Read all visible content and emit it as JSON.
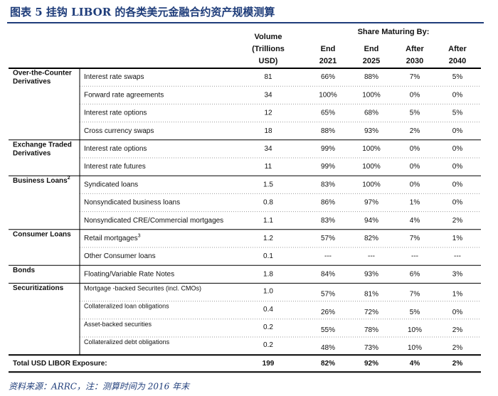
{
  "title": "图表 5   挂钩 LIBOR 的各类美元金融合约资产规模测算",
  "header": {
    "volume": [
      "Volume",
      "(Trillions",
      "USD)"
    ],
    "share_group": "Share Maturing By:",
    "columns": [
      [
        "End",
        "2021"
      ],
      [
        "End",
        "2025"
      ],
      [
        "After",
        "2030"
      ],
      [
        "After",
        "2040"
      ]
    ]
  },
  "groups": [
    {
      "label": [
        "Over-the-Counter",
        "Derivatives"
      ],
      "rows": [
        {
          "item": "Interest rate swaps",
          "volume": "81",
          "shares": [
            "66%",
            "88%",
            "7%",
            "5%"
          ]
        },
        {
          "item": "Forward rate agreements",
          "volume": "34",
          "shares": [
            "100%",
            "100%",
            "0%",
            "0%"
          ]
        },
        {
          "item": "Interest rate options",
          "volume": "12",
          "shares": [
            "65%",
            "68%",
            "5%",
            "5%"
          ]
        },
        {
          "item": "Cross currency swaps",
          "volume": "18",
          "shares": [
            "88%",
            "93%",
            "2%",
            "0%"
          ]
        }
      ]
    },
    {
      "label": [
        "Exchange Traded",
        "Derivatives"
      ],
      "rows": [
        {
          "item": "Interest rate options",
          "volume": "34",
          "shares": [
            "99%",
            "100%",
            "0%",
            "0%"
          ]
        },
        {
          "item": "Interest rate futures",
          "volume": "11",
          "shares": [
            "99%",
            "100%",
            "0%",
            "0%"
          ]
        }
      ]
    },
    {
      "label": [
        "Business Loans"
      ],
      "note": "2",
      "rows": [
        {
          "item": "Syndicated loans",
          "volume": "1.5",
          "shares": [
            "83%",
            "100%",
            "0%",
            "0%"
          ]
        },
        {
          "item": "Nonsyndicated business loans",
          "volume": "0.8",
          "shares": [
            "86%",
            "97%",
            "1%",
            "0%"
          ]
        },
        {
          "item": "Nonsyndicated CRE/Commercial mortgages",
          "volume": "1.1",
          "shares": [
            "83%",
            "94%",
            "4%",
            "2%"
          ]
        }
      ]
    },
    {
      "label": [
        "Consumer Loans"
      ],
      "rows": [
        {
          "item": "Retail mortgages",
          "note": "3",
          "volume": "1.2",
          "shares": [
            "57%",
            "82%",
            "7%",
            "1%"
          ]
        },
        {
          "item": "Other Consumer loans",
          "volume": "0.1",
          "shares": [
            "---",
            "---",
            "---",
            "---"
          ]
        }
      ]
    },
    {
      "label": [
        "Bonds"
      ],
      "rows": [
        {
          "item": "Floating/Variable Rate Notes",
          "volume": "1.8",
          "shares": [
            "84%",
            "93%",
            "6%",
            "3%"
          ]
        }
      ]
    },
    {
      "label": [
        "Securitizations"
      ],
      "small": true,
      "rows": [
        {
          "item": "Mortgage -backed Securites  (incl. CMOs)",
          "volume": "1.0",
          "shares": [
            "57%",
            "81%",
            "7%",
            "1%"
          ]
        },
        {
          "item": "Collateralized loan obligations",
          "volume": "0.4",
          "shares": [
            "26%",
            "72%",
            "5%",
            "0%"
          ]
        },
        {
          "item": "Asset-backed securities",
          "volume": "0.2",
          "shares": [
            "55%",
            "78%",
            "10%",
            "2%"
          ]
        },
        {
          "item": "Collateralized debt obligations",
          "volume": "0.2",
          "shares": [
            "48%",
            "73%",
            "10%",
            "2%"
          ]
        }
      ]
    }
  ],
  "total": {
    "label": "Total USD LIBOR Exposure:",
    "volume": "199",
    "shares": [
      "82%",
      "92%",
      "4%",
      "2%"
    ]
  },
  "source": "资料来源：ARRC，注：测算时间为 2016 年末"
}
